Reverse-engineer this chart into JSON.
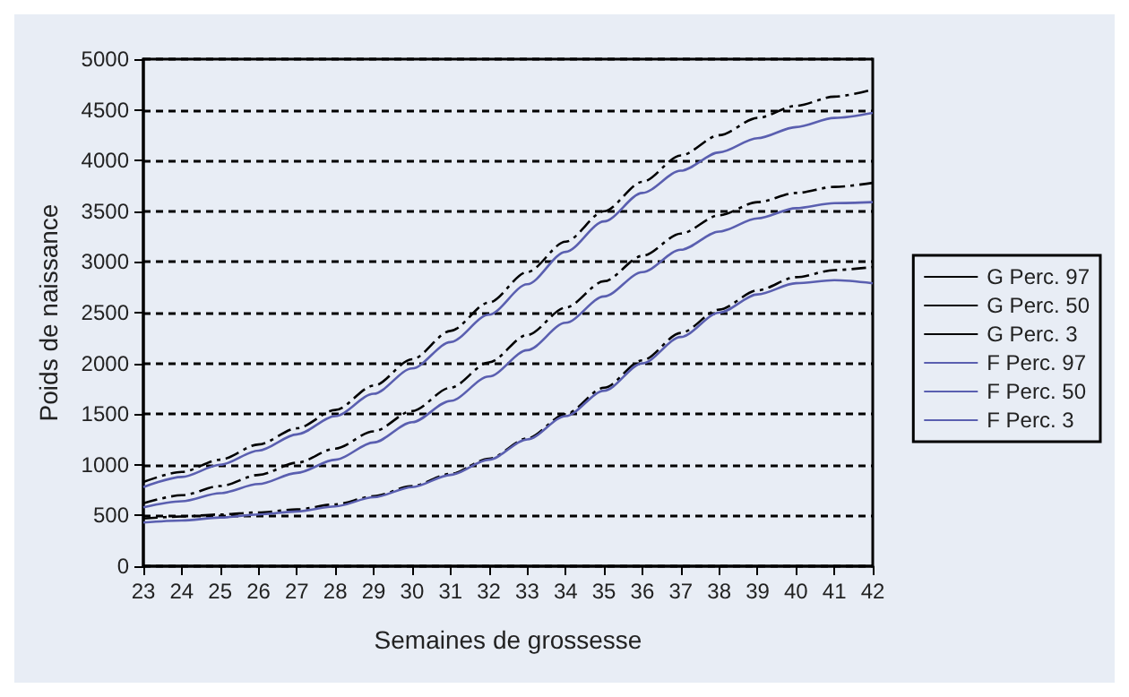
{
  "chart_data": {
    "type": "line",
    "xlabel": "Semaines de grossesse",
    "ylabel": "Poids de naissance",
    "x": [
      23,
      24,
      25,
      26,
      27,
      28,
      29,
      30,
      31,
      32,
      33,
      34,
      35,
      36,
      37,
      38,
      39,
      40,
      41,
      42
    ],
    "xlim": [
      23,
      42
    ],
    "xticks": [
      23,
      24,
      25,
      26,
      27,
      28,
      29,
      30,
      31,
      32,
      33,
      34,
      35,
      36,
      37,
      38,
      39,
      40,
      41,
      42
    ],
    "ylim": [
      0,
      5000
    ],
    "yticks": [
      0,
      500,
      1000,
      1500,
      2000,
      2500,
      3000,
      3500,
      4000,
      4500,
      5000
    ],
    "grid": "y",
    "legend": "right",
    "marker": "none",
    "series": [
      {
        "name": "G Perc. 97",
        "color": "#000000",
        "line_style": "dashed",
        "values": [
          830,
          930,
          1050,
          1200,
          1360,
          1540,
          1780,
          2040,
          2320,
          2600,
          2900,
          3200,
          3500,
          3790,
          4050,
          4250,
          4420,
          4540,
          4630,
          4700
        ]
      },
      {
        "name": "G Perc. 50",
        "color": "#000000",
        "line_style": "dashed",
        "values": [
          620,
          700,
          790,
          900,
          1020,
          1160,
          1330,
          1530,
          1760,
          2010,
          2280,
          2550,
          2810,
          3060,
          3280,
          3460,
          3590,
          3680,
          3740,
          3780
        ]
      },
      {
        "name": "G Perc. 3",
        "color": "#000000",
        "line_style": "dashed",
        "values": [
          470,
          490,
          510,
          530,
          560,
          610,
          690,
          790,
          910,
          1060,
          1260,
          1500,
          1760,
          2030,
          2300,
          2530,
          2720,
          2850,
          2920,
          2950
        ]
      },
      {
        "name": "F Perc. 97",
        "color": "#5a5fb0",
        "line_style": "solid",
        "values": [
          780,
          880,
          1000,
          1140,
          1300,
          1480,
          1700,
          1950,
          2210,
          2480,
          2780,
          3100,
          3400,
          3680,
          3900,
          4080,
          4220,
          4330,
          4420,
          4470
        ]
      },
      {
        "name": "F Perc. 50",
        "color": "#5a5fb0",
        "line_style": "solid",
        "values": [
          580,
          640,
          720,
          810,
          920,
          1050,
          1220,
          1420,
          1630,
          1870,
          2130,
          2400,
          2660,
          2900,
          3120,
          3300,
          3430,
          3530,
          3580,
          3590
        ]
      },
      {
        "name": "F Perc. 3",
        "color": "#5a5fb0",
        "line_style": "solid",
        "values": [
          430,
          450,
          480,
          510,
          540,
          590,
          680,
          780,
          900,
          1050,
          1250,
          1480,
          1730,
          2000,
          2260,
          2500,
          2680,
          2790,
          2820,
          2790
        ]
      }
    ]
  }
}
